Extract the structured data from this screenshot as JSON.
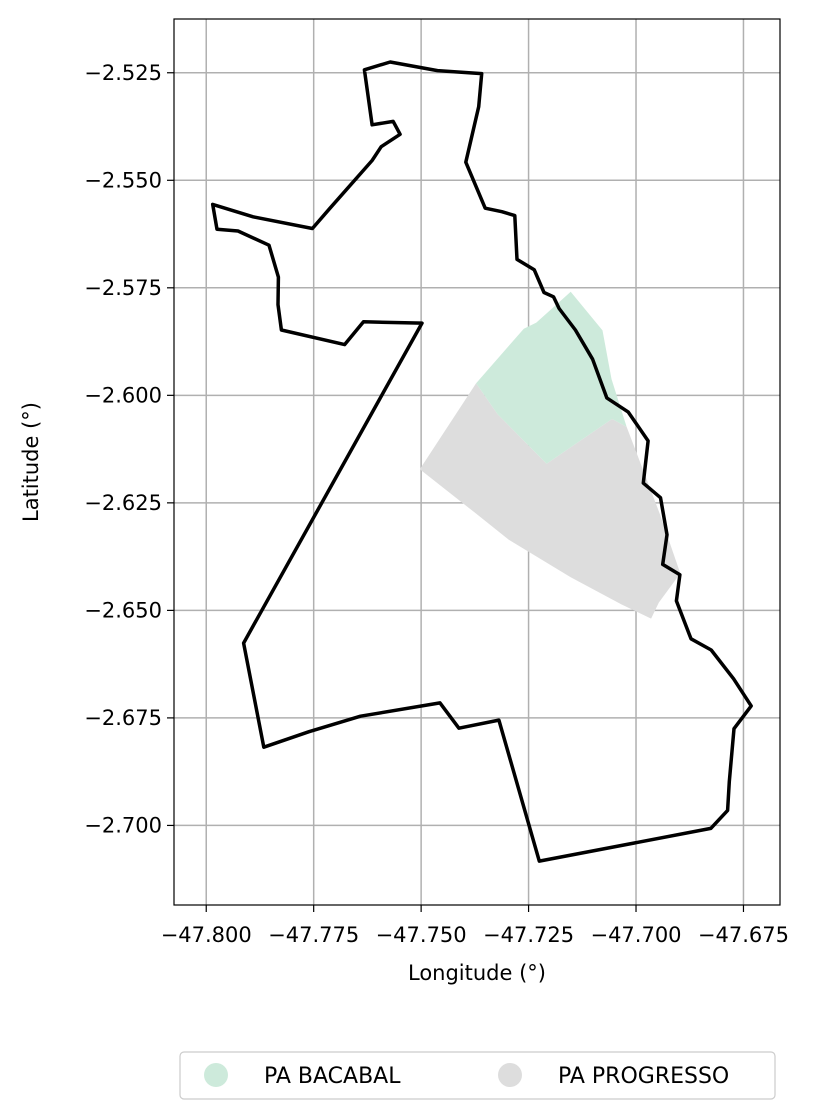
{
  "chart_data": {
    "type": "map",
    "xlabel": "Longitude (°)",
    "ylabel": "Latitude (°)",
    "xlim": [
      -47.8075,
      -47.6665
    ],
    "ylim": [
      -2.7185,
      -2.5125
    ],
    "grid": true,
    "x_ticks": [
      {
        "value": -47.8,
        "label": "−47.800"
      },
      {
        "value": -47.775,
        "label": "−47.775"
      },
      {
        "value": -47.75,
        "label": "−47.750"
      },
      {
        "value": -47.725,
        "label": "−47.725"
      },
      {
        "value": -47.7,
        "label": "−47.700"
      },
      {
        "value": -47.675,
        "label": "−47.675"
      }
    ],
    "y_ticks": [
      {
        "value": -2.525,
        "label": "−2.525"
      },
      {
        "value": -2.55,
        "label": "−2.550"
      },
      {
        "value": -2.575,
        "label": "−2.575"
      },
      {
        "value": -2.6,
        "label": "−2.600"
      },
      {
        "value": -2.625,
        "label": "−2.625"
      },
      {
        "value": -2.65,
        "label": "−2.650"
      },
      {
        "value": -2.675,
        "label": "−2.675"
      },
      {
        "value": -2.7,
        "label": "−2.700"
      }
    ],
    "legend_position": "bottom-center",
    "series": [
      {
        "name": "PA PROGRESSO",
        "color": "#dddddd",
        "polygon": [
          [
            -47.7503,
            -2.6172
          ],
          [
            -47.7372,
            -2.5972
          ],
          [
            -47.7322,
            -2.6044
          ],
          [
            -47.7208,
            -2.6159
          ],
          [
            -47.7056,
            -2.6055
          ],
          [
            -47.7022,
            -2.6073
          ],
          [
            -47.6945,
            -2.6275
          ],
          [
            -47.6897,
            -2.6414
          ],
          [
            -47.6947,
            -2.6482
          ],
          [
            -47.6965,
            -2.6519
          ],
          [
            -47.7034,
            -2.6486
          ],
          [
            -47.7152,
            -2.6423
          ],
          [
            -47.7296,
            -2.6336
          ],
          [
            -47.7376,
            -2.6272
          ]
        ]
      },
      {
        "name": "PA BACABAL",
        "color": "#cdeadb",
        "polygon": [
          [
            -47.7372,
            -2.5972
          ],
          [
            -47.7261,
            -2.5845
          ],
          [
            -47.7232,
            -2.5831
          ],
          [
            -47.7152,
            -2.5759
          ],
          [
            -47.7078,
            -2.5849
          ],
          [
            -47.7057,
            -2.5962
          ],
          [
            -47.7022,
            -2.6073
          ],
          [
            -47.7056,
            -2.6055
          ],
          [
            -47.7208,
            -2.6159
          ],
          [
            -47.7322,
            -2.6044
          ]
        ]
      }
    ],
    "boundary": [
      [
        -47.7632,
        -2.5243
      ],
      [
        -47.7572,
        -2.5225
      ],
      [
        -47.7462,
        -2.5245
      ],
      [
        -47.7359,
        -2.5252
      ],
      [
        -47.7366,
        -2.5329
      ],
      [
        -47.7396,
        -2.5458
      ],
      [
        -47.7351,
        -2.5565
      ],
      [
        -47.7312,
        -2.5573
      ],
      [
        -47.7282,
        -2.5582
      ],
      [
        -47.7277,
        -2.5684
      ],
      [
        -47.7237,
        -2.5708
      ],
      [
        -47.7214,
        -2.5761
      ],
      [
        -47.7192,
        -2.5771
      ],
      [
        -47.7179,
        -2.5798
      ],
      [
        -47.7141,
        -2.5848
      ],
      [
        -47.7101,
        -2.5916
      ],
      [
        -47.7068,
        -2.6006
      ],
      [
        -47.7018,
        -2.6039
      ],
      [
        -47.6972,
        -2.6106
      ],
      [
        -47.6983,
        -2.6204
      ],
      [
        -47.6943,
        -2.6238
      ],
      [
        -47.6928,
        -2.6324
      ],
      [
        -47.6938,
        -2.6393
      ],
      [
        -47.6898,
        -2.6417
      ],
      [
        -47.6906,
        -2.6478
      ],
      [
        -47.6872,
        -2.6566
      ],
      [
        -47.6825,
        -2.6592
      ],
      [
        -47.6773,
        -2.6659
      ],
      [
        -47.6732,
        -2.6722
      ],
      [
        -47.6772,
        -2.6775
      ],
      [
        -47.6783,
        -2.6898
      ],
      [
        -47.6787,
        -2.6965
      ],
      [
        -47.6826,
        -2.7007
      ],
      [
        -47.7225,
        -2.7083
      ],
      [
        -47.7319,
        -2.6755
      ],
      [
        -47.7412,
        -2.6774
      ],
      [
        -47.7456,
        -2.6715
      ],
      [
        -47.7641,
        -2.6746
      ],
      [
        -47.7761,
        -2.6782
      ],
      [
        -47.7866,
        -2.6818
      ],
      [
        -47.7913,
        -2.6576
      ],
      [
        -47.7498,
        -2.5832
      ],
      [
        -47.7634,
        -2.5829
      ],
      [
        -47.7678,
        -2.5882
      ],
      [
        -47.7825,
        -2.5848
      ],
      [
        -47.7833,
        -2.5789
      ],
      [
        -47.7832,
        -2.5725
      ],
      [
        -47.7854,
        -2.5651
      ],
      [
        -47.7926,
        -2.5618
      ],
      [
        -47.7975,
        -2.5614
      ],
      [
        -47.7985,
        -2.5556
      ],
      [
        -47.7891,
        -2.5585
      ],
      [
        -47.7753,
        -2.5612
      ],
      [
        -47.7712,
        -2.5565
      ],
      [
        -47.7614,
        -2.5454
      ],
      [
        -47.7593,
        -2.5422
      ],
      [
        -47.7549,
        -2.5393
      ],
      [
        -47.7565,
        -2.5363
      ],
      [
        -47.7614,
        -2.5371
      ],
      [
        -47.7632,
        -2.5243
      ]
    ]
  },
  "legend": {
    "items": [
      {
        "label": "PA BACABAL",
        "color": "#cdeadb"
      },
      {
        "label": "PA PROGRESSO",
        "color": "#dddddd"
      }
    ]
  }
}
